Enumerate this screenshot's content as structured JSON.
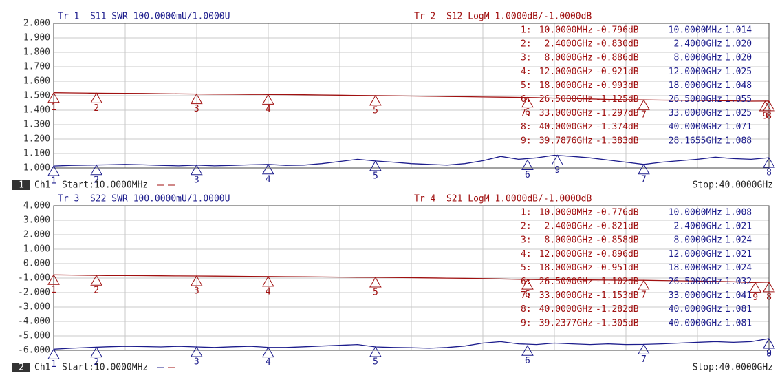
{
  "chart_data": [
    {
      "type": "line",
      "title_left": "Tr 1  S11 SWR 100.0000mU/1.0000U",
      "title_right": "Tr 2  S12 LogM 1.0000dB/-1.0000dB",
      "channel_number": "1",
      "channel": "Ch1",
      "start": "Start:10.0000MHz",
      "stop": "Stop:40.0000GHz",
      "x": [
        0.01,
        1,
        2,
        3,
        4,
        5,
        6,
        7,
        8,
        9,
        10,
        11,
        12,
        13,
        14,
        15,
        16,
        17,
        18,
        19,
        20,
        21,
        22,
        23,
        24,
        25,
        26,
        27,
        28,
        29,
        30,
        31,
        32,
        33,
        34,
        35,
        36,
        37,
        38,
        39,
        40
      ],
      "xlim": [
        0.01,
        40
      ],
      "ylim": [
        1,
        2
      ],
      "yticks": [
        {
          "value": 2,
          "label": "2.000"
        },
        {
          "value": 1.9,
          "label": "1.900"
        },
        {
          "value": 1.8,
          "label": "1.800"
        },
        {
          "value": 1.7,
          "label": "1.700"
        },
        {
          "value": 1.6,
          "label": "1.600"
        },
        {
          "value": 1.5,
          "label": "1.500"
        },
        {
          "value": 1.4,
          "label": "1.400"
        },
        {
          "value": 1.3,
          "label": "1.300"
        },
        {
          "value": 1.2,
          "label": "1.200"
        },
        {
          "value": 1.1,
          "label": "1.100"
        },
        {
          "value": 1,
          "label": "1.000"
        }
      ],
      "y2lim": [
        -6,
        4
      ],
      "grid": true,
      "marker_rows": [
        "1:",
        "2:",
        "3:",
        "4:",
        "5:",
        "6:",
        "7:",
        "8:",
        "9:"
      ],
      "series": [
        {
          "color": "#a01010",
          "axis": "y2",
          "values": [
            -0.796,
            -0.81,
            -0.826,
            -0.835,
            -0.84,
            -0.85,
            -0.86,
            -0.875,
            -0.886,
            -0.895,
            -0.905,
            -0.913,
            -0.921,
            -0.93,
            -0.94,
            -0.952,
            -0.965,
            -0.98,
            -0.993,
            -1.01,
            -1.025,
            -1.04,
            -1.055,
            -1.07,
            -1.09,
            -1.105,
            -1.12,
            -1.14,
            -1.17,
            -1.2,
            -1.23,
            -1.26,
            -1.28,
            -1.297,
            -1.31,
            -1.32,
            -1.33,
            -1.345,
            -1.36,
            -1.38,
            -1.374
          ],
          "markers": [
            {
              "n": "1",
              "x": 0.01,
              "x_label": "10.0000MHz",
              "value": -0.796,
              "value_label": "-0.796dB"
            },
            {
              "n": "2",
              "x": 2.4,
              "x_label": "2.4000GHz",
              "value": -0.83,
              "value_label": "-0.830dB"
            },
            {
              "n": "3",
              "x": 8,
              "x_label": "8.0000GHz",
              "value": -0.886,
              "value_label": "-0.886dB"
            },
            {
              "n": "4",
              "x": 12,
              "x_label": "12.0000GHz",
              "value": -0.921,
              "value_label": "-0.921dB"
            },
            {
              "n": "5",
              "x": 18,
              "x_label": "18.0000GHz",
              "value": -0.993,
              "value_label": "-0.993dB"
            },
            {
              "n": "6",
              "x": 26.5,
              "x_label": "26.5000GHz",
              "value": -1.125,
              "value_label": "-1.125dB"
            },
            {
              "n": "7",
              "x": 33,
              "x_label": "33.0000GHz",
              "value": -1.297,
              "value_label": "-1.297dB"
            },
            {
              "n": "8",
              "x": 40,
              "x_label": "40.0000GHz",
              "value": -1.374,
              "value_label": "-1.374dB"
            },
            {
              "n": "9",
              "x": 39.7876,
              "x_label": "39.7876GHz",
              "value": -1.383,
              "value_label": "-1.383dB"
            }
          ]
        },
        {
          "color": "#1c1c8c",
          "axis": "y",
          "values": [
            1.014,
            1.018,
            1.02,
            1.022,
            1.025,
            1.022,
            1.018,
            1.015,
            1.02,
            1.015,
            1.018,
            1.022,
            1.025,
            1.018,
            1.02,
            1.03,
            1.045,
            1.06,
            1.048,
            1.04,
            1.03,
            1.025,
            1.02,
            1.03,
            1.05,
            1.08,
            1.06,
            1.07,
            1.088,
            1.08,
            1.07,
            1.055,
            1.04,
            1.025,
            1.04,
            1.05,
            1.06,
            1.075,
            1.065,
            1.06,
            1.071
          ],
          "markers": [
            {
              "n": "1",
              "x": 0.01,
              "x_label": "10.0000MHz",
              "value": 1.014,
              "value_label": "1.014"
            },
            {
              "n": "2",
              "x": 2.4,
              "x_label": "2.4000GHz",
              "value": 1.02,
              "value_label": "1.020"
            },
            {
              "n": "3",
              "x": 8,
              "x_label": "8.0000GHz",
              "value": 1.02,
              "value_label": "1.020"
            },
            {
              "n": "4",
              "x": 12,
              "x_label": "12.0000GHz",
              "value": 1.025,
              "value_label": "1.025"
            },
            {
              "n": "5",
              "x": 18,
              "x_label": "18.0000GHz",
              "value": 1.048,
              "value_label": "1.048"
            },
            {
              "n": "6",
              "x": 26.5,
              "x_label": "26.5000GHz",
              "value": 1.055,
              "value_label": "1.055"
            },
            {
              "n": "7",
              "x": 33,
              "x_label": "33.0000GHz",
              "value": 1.025,
              "value_label": "1.025"
            },
            {
              "n": "8",
              "x": 40,
              "x_label": "40.0000GHz",
              "value": 1.071,
              "value_label": "1.071"
            },
            {
              "n": "9",
              "x": 28.1655,
              "x_label": "28.1655GHz",
              "value": 1.088,
              "value_label": "1.088"
            }
          ]
        }
      ]
    },
    {
      "type": "line",
      "title_left": "Tr 3  S22 SWR 100.0000mU/1.0000U",
      "title_right": "Tr 4  S21 LogM 1.0000dB/-1.0000dB",
      "channel_number": "2",
      "channel": "Ch1",
      "start": "Start:10.0000MHz",
      "stop": "Stop:40.0000GHz",
      "x": [
        0.01,
        1,
        2,
        3,
        4,
        5,
        6,
        7,
        8,
        9,
        10,
        11,
        12,
        13,
        14,
        15,
        16,
        17,
        18,
        19,
        20,
        21,
        22,
        23,
        24,
        25,
        26,
        27,
        28,
        29,
        30,
        31,
        32,
        33,
        34,
        35,
        36,
        37,
        38,
        39,
        40
      ],
      "xlim": [
        0.01,
        40
      ],
      "ylim": [
        -6,
        4
      ],
      "yticks": [
        {
          "value": 4,
          "label": "4.000"
        },
        {
          "value": 3,
          "label": "3.000"
        },
        {
          "value": 2,
          "label": "2.000"
        },
        {
          "value": 1,
          "label": "1.000"
        },
        {
          "value": 0,
          "label": "0.000"
        },
        {
          "value": -1,
          "label": "-1.000"
        },
        {
          "value": -2,
          "label": "-2.000"
        },
        {
          "value": -3,
          "label": "-3.000"
        },
        {
          "value": -4,
          "label": "-4.000"
        },
        {
          "value": -5,
          "label": "-5.000"
        },
        {
          "value": -6,
          "label": "-6.000"
        }
      ],
      "y2lim": [
        1,
        2
      ],
      "grid": true,
      "marker_rows": [
        "1:",
        "2:",
        "3:",
        "4:",
        "5:",
        "6:",
        "7:",
        "8:",
        "9:"
      ],
      "series": [
        {
          "color": "#a01010",
          "axis": "y",
          "values": [
            -0.776,
            -0.79,
            -0.81,
            -0.823,
            -0.83,
            -0.835,
            -0.845,
            -0.85,
            -0.858,
            -0.866,
            -0.876,
            -0.886,
            -0.896,
            -0.905,
            -0.915,
            -0.925,
            -0.935,
            -0.945,
            -0.951,
            -0.96,
            -0.975,
            -0.99,
            -1.005,
            -1.02,
            -1.04,
            -1.06,
            -1.09,
            -1.105,
            -1.11,
            -1.12,
            -1.13,
            -1.14,
            -1.148,
            -1.153,
            -1.17,
            -1.19,
            -1.21,
            -1.23,
            -1.25,
            -1.3,
            -1.282
          ],
          "markers": [
            {
              "n": "1",
              "x": 0.01,
              "x_label": "10.0000MHz",
              "value": -0.776,
              "value_label": "-0.776dB"
            },
            {
              "n": "2",
              "x": 2.4,
              "x_label": "2.4000GHz",
              "value": -0.821,
              "value_label": "-0.821dB"
            },
            {
              "n": "3",
              "x": 8,
              "x_label": "8.0000GHz",
              "value": -0.858,
              "value_label": "-0.858dB"
            },
            {
              "n": "4",
              "x": 12,
              "x_label": "12.0000GHz",
              "value": -0.896,
              "value_label": "-0.896dB"
            },
            {
              "n": "5",
              "x": 18,
              "x_label": "18.0000GHz",
              "value": -0.951,
              "value_label": "-0.951dB"
            },
            {
              "n": "6",
              "x": 26.5,
              "x_label": "26.5000GHz",
              "value": -1.102,
              "value_label": "-1.102dB"
            },
            {
              "n": "7",
              "x": 33,
              "x_label": "33.0000GHz",
              "value": -1.153,
              "value_label": "-1.153dB"
            },
            {
              "n": "8",
              "x": 40,
              "x_label": "40.0000GHz",
              "value": -1.282,
              "value_label": "-1.282dB"
            },
            {
              "n": "9",
              "x": 39.2377,
              "x_label": "39.2377GHz",
              "value": -1.305,
              "value_label": "-1.305dB"
            }
          ]
        },
        {
          "color": "#1c1c8c",
          "axis": "y2",
          "values": [
            1.008,
            1.015,
            1.02,
            1.025,
            1.028,
            1.026,
            1.024,
            1.028,
            1.024,
            1.02,
            1.025,
            1.028,
            1.021,
            1.02,
            1.025,
            1.03,
            1.035,
            1.04,
            1.024,
            1.02,
            1.018,
            1.015,
            1.02,
            1.03,
            1.05,
            1.06,
            1.045,
            1.04,
            1.05,
            1.045,
            1.04,
            1.045,
            1.04,
            1.041,
            1.045,
            1.05,
            1.055,
            1.06,
            1.055,
            1.06,
            1.081
          ],
          "markers": [
            {
              "n": "1",
              "x": 0.01,
              "x_label": "10.0000MHz",
              "value": 1.008,
              "value_label": "1.008"
            },
            {
              "n": "2",
              "x": 2.4,
              "x_label": "2.4000GHz",
              "value": 1.021,
              "value_label": "1.021"
            },
            {
              "n": "3",
              "x": 8,
              "x_label": "8.0000GHz",
              "value": 1.024,
              "value_label": "1.024"
            },
            {
              "n": "4",
              "x": 12,
              "x_label": "12.0000GHz",
              "value": 1.021,
              "value_label": "1.021"
            },
            {
              "n": "5",
              "x": 18,
              "x_label": "18.0000GHz",
              "value": 1.024,
              "value_label": "1.024"
            },
            {
              "n": "6",
              "x": 26.5,
              "x_label": "26.5000GHz",
              "value": 1.032,
              "value_label": "1.032"
            },
            {
              "n": "7",
              "x": 33,
              "x_label": "33.0000GHz",
              "value": 1.041,
              "value_label": "1.041"
            },
            {
              "n": "8",
              "x": 40,
              "x_label": "40.0000GHz",
              "value": 1.081,
              "value_label": "1.081"
            },
            {
              "n": "9",
              "x": 40,
              "x_label": "40.0000GHz",
              "value": 1.081,
              "value_label": "1.081"
            }
          ]
        }
      ]
    }
  ]
}
